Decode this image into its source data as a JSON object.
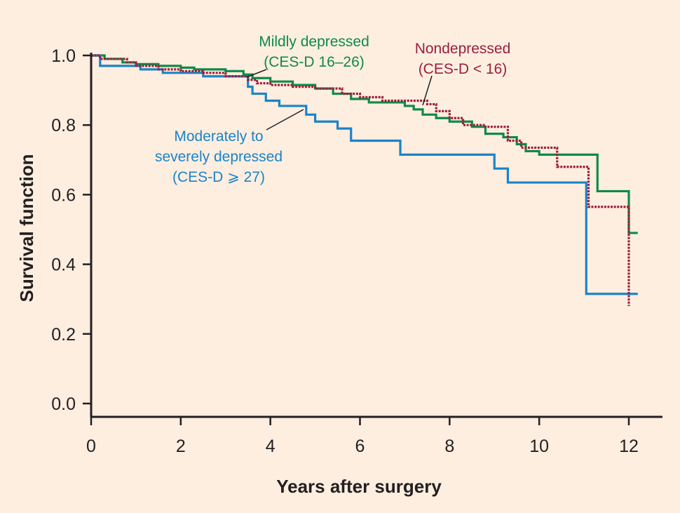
{
  "chart_data": {
    "type": "line",
    "xlabel": "Years after surgery",
    "ylabel": "Survival function",
    "xlim": [
      0,
      12.6
    ],
    "ylim": [
      0,
      1.02
    ],
    "x_ticks": [
      0,
      2,
      4,
      6,
      8,
      10,
      12
    ],
    "y_ticks": [
      0.0,
      0.2,
      0.4,
      0.6,
      0.8,
      1.0
    ],
    "x_tick_labels": [
      "0",
      "2",
      "4",
      "6",
      "8",
      "10",
      "12"
    ],
    "y_tick_labels": [
      "0.0",
      "0.2",
      "0.4",
      "0.6",
      "0.8",
      "1.0"
    ],
    "grid": false,
    "series": [
      {
        "name": "Mildly depressed (CES-D 16–26)",
        "color": "#0f8a47",
        "style": "solid",
        "x": [
          0,
          0.3,
          0.7,
          1.0,
          1.5,
          2.0,
          2.3,
          3.0,
          3.4,
          3.6,
          4.0,
          4.5,
          5.0,
          5.4,
          5.8,
          6.2,
          7.0,
          7.2,
          7.4,
          7.7,
          8.0,
          8.5,
          8.8,
          9.2,
          9.5,
          9.7,
          10.0,
          10.5,
          11.0,
          11.3,
          11.6,
          12.0,
          12.2
        ],
        "y": [
          1.0,
          0.99,
          0.98,
          0.975,
          0.97,
          0.965,
          0.96,
          0.955,
          0.945,
          0.935,
          0.925,
          0.915,
          0.905,
          0.89,
          0.875,
          0.865,
          0.855,
          0.845,
          0.83,
          0.82,
          0.81,
          0.795,
          0.775,
          0.765,
          0.745,
          0.725,
          0.715,
          0.715,
          0.715,
          0.61,
          0.61,
          0.49,
          0.49
        ]
      },
      {
        "name": "Nondepressed (CES-D < 16)",
        "color": "#9b1f3d",
        "style": "dotted",
        "x": [
          0,
          0.2,
          0.8,
          1.0,
          1.5,
          2.0,
          2.5,
          3.0,
          3.5,
          3.7,
          4.0,
          4.5,
          5.0,
          5.6,
          6.0,
          6.5,
          7.0,
          7.5,
          7.7,
          8.0,
          8.3,
          8.8,
          9.3,
          9.6,
          10.0,
          10.4,
          11.0,
          11.1,
          11.5,
          12.0
        ],
        "y": [
          1.0,
          0.99,
          0.98,
          0.97,
          0.96,
          0.955,
          0.95,
          0.94,
          0.93,
          0.92,
          0.915,
          0.91,
          0.905,
          0.89,
          0.88,
          0.87,
          0.87,
          0.86,
          0.84,
          0.82,
          0.8,
          0.795,
          0.755,
          0.735,
          0.735,
          0.68,
          0.68,
          0.565,
          0.565,
          0.28
        ]
      },
      {
        "name": "Moderately to severely depressed (CES-D ≥ 27)",
        "color": "#1b83c6",
        "style": "solid",
        "x": [
          0,
          0.2,
          1.1,
          1.6,
          2.0,
          2.5,
          3.0,
          3.5,
          3.6,
          3.9,
          4.2,
          4.8,
          5.0,
          5.5,
          5.8,
          6.5,
          6.9,
          7.0,
          7.5,
          8.0,
          8.5,
          9.0,
          9.3,
          10.0,
          10.5,
          11.05,
          11.5,
          12.2
        ],
        "y": [
          1.0,
          0.97,
          0.96,
          0.95,
          0.95,
          0.94,
          0.94,
          0.91,
          0.89,
          0.87,
          0.855,
          0.83,
          0.81,
          0.79,
          0.755,
          0.755,
          0.715,
          0.715,
          0.715,
          0.715,
          0.715,
          0.675,
          0.635,
          0.635,
          0.635,
          0.315,
          0.315,
          0.315
        ]
      }
    ],
    "annotations": [
      {
        "series_index": 0,
        "lines": [
          "Mildly depressed",
          "(CES-D 16–26)"
        ]
      },
      {
        "series_index": 1,
        "lines": [
          "Nondepressed",
          "(CES-D < 16)"
        ]
      },
      {
        "series_index": 2,
        "lines": [
          "Moderately to",
          "severely depressed",
          "(CES-D ⩾ 27)"
        ]
      }
    ]
  }
}
